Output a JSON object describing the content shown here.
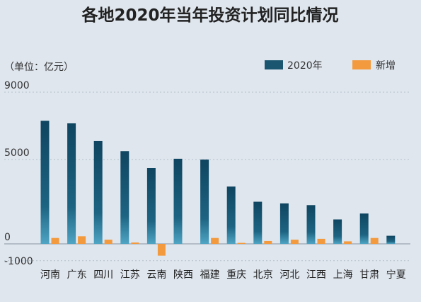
{
  "chart_data": {
    "type": "bar",
    "title": "各地2020年当年投资计划同比情况",
    "unit_label": "（单位：亿元）",
    "categories": [
      "河南",
      "广东",
      "四川",
      "江苏",
      "云南",
      "陕西",
      "福建",
      "重庆",
      "北京",
      "河北",
      "江西",
      "上海",
      "甘肃",
      "宁夏"
    ],
    "series": [
      {
        "name": "2020年",
        "color": "#1a5670",
        "values": [
          7300,
          7150,
          6100,
          5500,
          4500,
          5050,
          5000,
          3400,
          2500,
          2400,
          2300,
          1450,
          1800,
          480
        ]
      },
      {
        "name": "新增",
        "color": "#f39a3e",
        "values": [
          350,
          450,
          250,
          80,
          -700,
          0,
          350,
          60,
          170,
          250,
          300,
          150,
          350,
          0
        ]
      }
    ],
    "y_ticks": [
      "9000",
      "5000",
      "0",
      "-1000"
    ],
    "ylim": [
      -1200,
      9500
    ],
    "grid": true,
    "legend_position": "top-right"
  }
}
